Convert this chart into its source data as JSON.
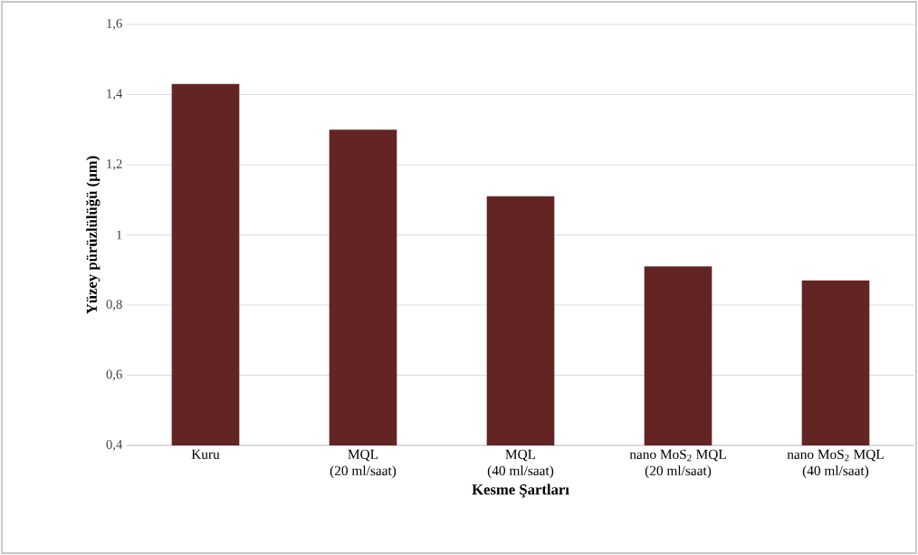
{
  "chart_data": {
    "type": "bar",
    "xlabel": "**Kesme Şartları**",
    "ylabel": "**Yüzey pürüzlülüğü (µm)**",
    "categories": [
      "Kuru",
      "MQL\n(20 ml/saat)",
      "MQL\n(40 ml/saat)",
      "nano MoS$_{2}$ MQL\n(20 ml/saat)",
      "nano MoS$_{2}$ MQL\n(40 ml/saat)"
    ],
    "values": [
      1.43,
      1.3,
      1.11,
      0.91,
      0.87
    ],
    "color": "#632523",
    "ylim": [
      0.4,
      1.6
    ],
    "yticks": [
      {
        "value": 0.4,
        "label": "0,4"
      },
      {
        "value": 0.6,
        "label": "0,6"
      },
      {
        "value": 0.8,
        "label": "0,8"
      },
      1,
      {
        "value": 1.2,
        "label": "1,2"
      },
      {
        "value": 1.4,
        "label": "1,4"
      },
      {
        "value": 1.6,
        "label": "1,6"
      }
    ],
    "grid": "y"
  }
}
